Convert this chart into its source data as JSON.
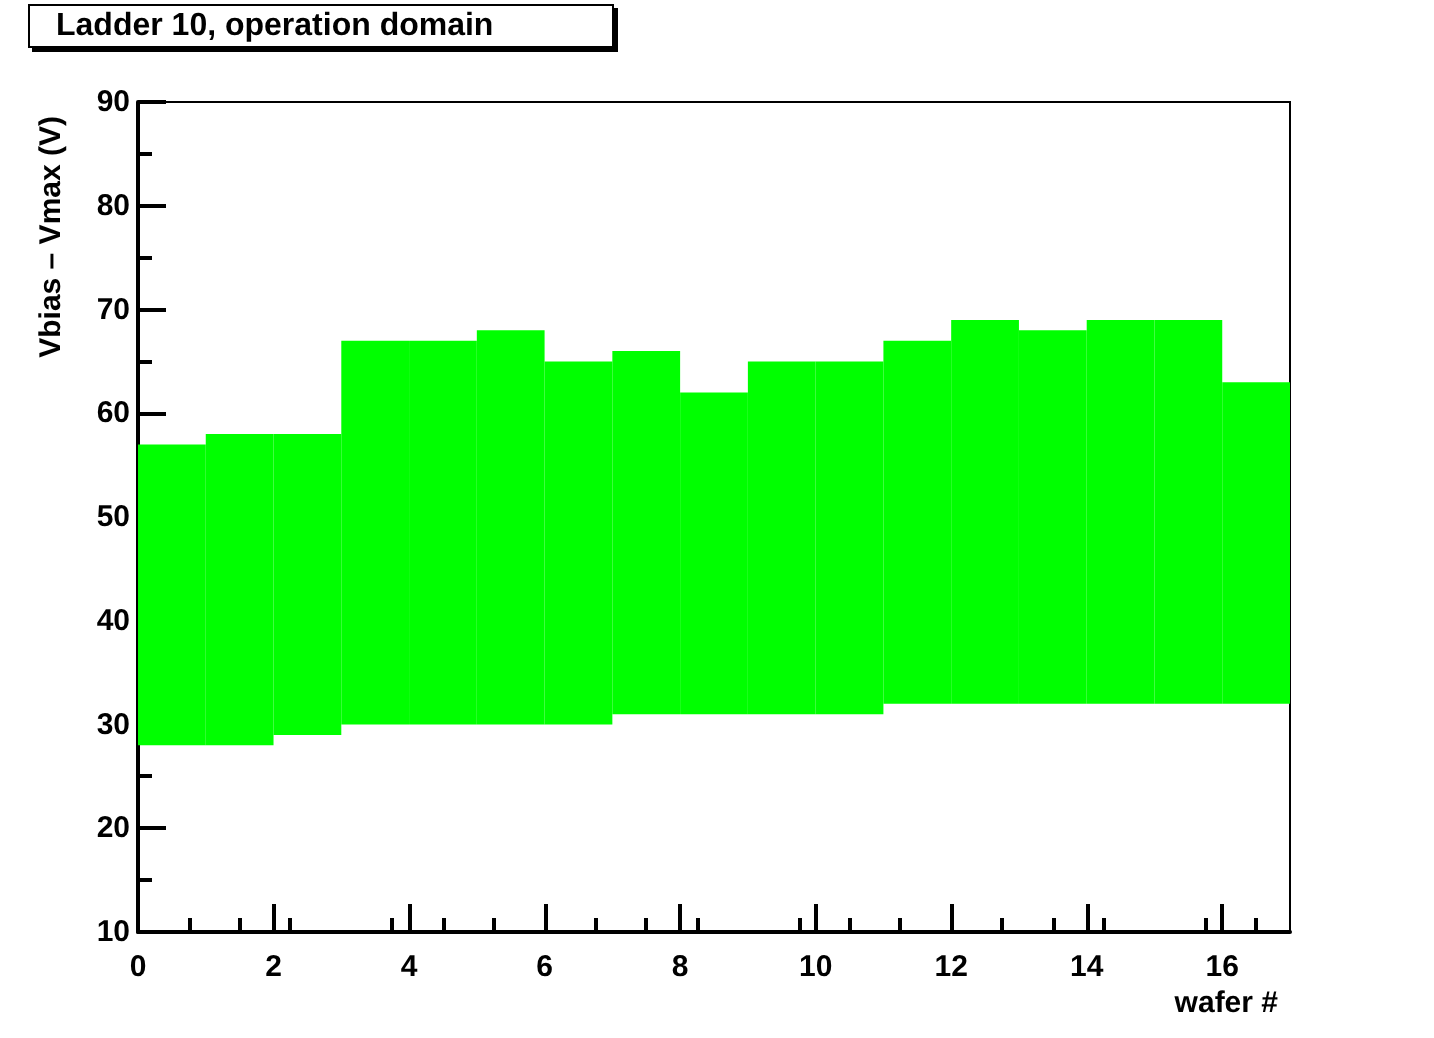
{
  "chart_data": {
    "type": "bar",
    "title": "Ladder 10, operation domain",
    "xlabel": "wafer #",
    "ylabel": "Vbias – Vmax (V)",
    "x": [
      0.5,
      1.5,
      2.5,
      3.5,
      4.5,
      5.5,
      6.5,
      7.5,
      8.5,
      9.5,
      10.5,
      11.5,
      12.5,
      13.5,
      14.5,
      15.5,
      16.5
    ],
    "base": [
      28,
      28,
      29,
      30,
      30,
      30,
      30,
      31,
      31,
      31,
      31,
      32,
      32,
      32,
      32,
      32,
      32
    ],
    "values": [
      29,
      30,
      29,
      37,
      37,
      38,
      35,
      35,
      31,
      34,
      34,
      35,
      37,
      36,
      37,
      37,
      31
    ],
    "color": "#00ff00",
    "xlim": [
      0,
      17
    ],
    "xticks": [
      0,
      2,
      4,
      6,
      8,
      10,
      12,
      14,
      16
    ],
    "ylim": [
      10,
      90
    ],
    "yticks": [
      10,
      20,
      30,
      40,
      50,
      60,
      70,
      80,
      90
    ],
    "grid": false
  }
}
